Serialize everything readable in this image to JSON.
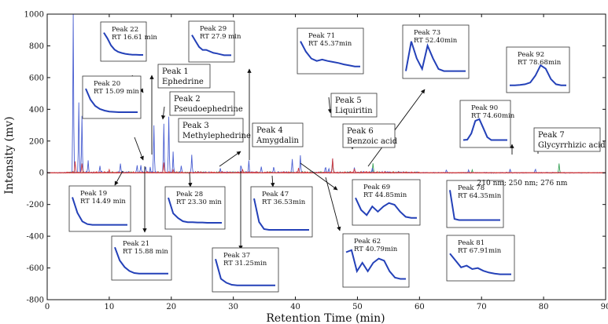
{
  "chart_data": {
    "type": "line",
    "xlabel": "Retention Time (min)",
    "ylabel": "Intensity (mv)",
    "xlim": [
      0,
      90
    ],
    "ylim": [
      -800,
      1000
    ],
    "x_ticks": [
      0,
      10,
      20,
      30,
      40,
      50,
      60,
      70,
      80,
      90
    ],
    "y_ticks": [
      -800,
      -600,
      -400,
      -200,
      0,
      200,
      400,
      600,
      800,
      1000
    ],
    "grid": false,
    "colors": {
      "trace_210": "#4a5fd1",
      "trace_250": "#d94040",
      "trace_276": "#3ba35a",
      "inset": "#2441b8",
      "axis": "#111111"
    },
    "wavelength_note": "210 nm; 250 nm; 276 nm",
    "main_trace_peaks": [
      {
        "x": 4.2,
        "y": 1000
      },
      {
        "x": 5.1,
        "y": 440
      },
      {
        "x": 5.6,
        "y": 360
      },
      {
        "x": 6.6,
        "y": 80
      },
      {
        "x": 8.5,
        "y": 45
      },
      {
        "x": 11.8,
        "y": 55
      },
      {
        "x": 14.49,
        "y": 40
      },
      {
        "x": 15.09,
        "y": 45
      },
      {
        "x": 15.88,
        "y": 40
      },
      {
        "x": 16.61,
        "y": 35
      },
      {
        "x": 17.2,
        "y": 300
      },
      {
        "x": 18.8,
        "y": 310
      },
      {
        "x": 19.6,
        "y": 350
      },
      {
        "x": 20.3,
        "y": 130
      },
      {
        "x": 21.6,
        "y": 40
      },
      {
        "x": 23.3,
        "y": 110
      },
      {
        "x": 27.9,
        "y": 30
      },
      {
        "x": 31.25,
        "y": 50
      },
      {
        "x": 32.5,
        "y": 75
      },
      {
        "x": 34.5,
        "y": 35
      },
      {
        "x": 36.53,
        "y": 40
      },
      {
        "x": 39.5,
        "y": 85
      },
      {
        "x": 40.79,
        "y": 110
      },
      {
        "x": 44.85,
        "y": 35
      },
      {
        "x": 45.37,
        "y": 30
      },
      {
        "x": 46.0,
        "y": 90
      },
      {
        "x": 49.5,
        "y": 30
      },
      {
        "x": 52.4,
        "y": 30
      },
      {
        "x": 64.35,
        "y": 20
      },
      {
        "x": 67.91,
        "y": 20
      },
      {
        "x": 74.6,
        "y": 25
      },
      {
        "x": 78.68,
        "y": 25
      }
    ],
    "secondary_trace_peaks": [
      {
        "x": 4.5,
        "y": 70
      },
      {
        "x": 5.6,
        "y": 60
      },
      {
        "x": 10.0,
        "y": 20
      },
      {
        "x": 18.8,
        "y": 60
      },
      {
        "x": 20.3,
        "y": 20
      },
      {
        "x": 31.5,
        "y": 20
      },
      {
        "x": 40.5,
        "y": 30
      },
      {
        "x": 46.0,
        "y": 90
      },
      {
        "x": 49.5,
        "y": 25
      }
    ],
    "tertiary_trace_peaks": [
      {
        "x": 46.0,
        "y": 80
      },
      {
        "x": 52.5,
        "y": 60
      },
      {
        "x": 68.5,
        "y": 20
      },
      {
        "x": 82.5,
        "y": 60
      }
    ],
    "compound_labels": [
      {
        "lines": [
          "Peak 1",
          "Ephedrine"
        ]
      },
      {
        "lines": [
          "Peak 2",
          "Pseudoephedrine"
        ]
      },
      {
        "lines": [
          "Peak 3",
          "Methylephedrine"
        ]
      },
      {
        "lines": [
          "Peak 4",
          "Amygdalin"
        ]
      },
      {
        "lines": [
          "Peak 5",
          "Liquiritin"
        ]
      },
      {
        "lines": [
          "Peak 6",
          "Benzoic acid"
        ]
      },
      {
        "lines": [
          "Peak 7",
          "Glycyrrhizic acid"
        ]
      }
    ],
    "insets": [
      {
        "peak": "Peak 22",
        "rt": "RT 16.61 min",
        "profile": [
          0.9,
          0.7,
          0.45,
          0.3,
          0.22,
          0.18,
          0.15,
          0.13,
          0.12,
          0.12,
          0.11,
          0.11
        ]
      },
      {
        "peak": "Peak 20",
        "rt": "RT 15.09 min",
        "profile": [
          0.85,
          0.5,
          0.3,
          0.2,
          0.15,
          0.12,
          0.11,
          0.1,
          0.1,
          0.1,
          0.1,
          0.1
        ]
      },
      {
        "peak": "Peak 29",
        "rt": "RT 27.9 min",
        "profile": [
          0.8,
          0.6,
          0.4,
          0.3,
          0.3,
          0.25,
          0.2,
          0.18,
          0.15,
          0.12,
          0.12,
          0.12
        ]
      },
      {
        "peak": "Peak 71",
        "rt": "RT 45.37min",
        "profile": [
          0.85,
          0.55,
          0.35,
          0.28,
          0.32,
          0.28,
          0.25,
          0.22,
          0.18,
          0.15,
          0.12,
          0.12
        ]
      },
      {
        "peak": "Peak 73",
        "rt": "RT 52.40min",
        "profile": [
          0.1,
          0.8,
          0.4,
          0.15,
          0.7,
          0.4,
          0.15,
          0.1,
          0.1,
          0.1,
          0.1,
          0.1
        ]
      },
      {
        "peak": "Peak 92",
        "rt": "RT 78.68min",
        "profile": [
          0.12,
          0.12,
          0.13,
          0.15,
          0.2,
          0.4,
          0.7,
          0.6,
          0.3,
          0.15,
          0.12,
          0.12
        ]
      },
      {
        "peak": "Peak 90",
        "rt": "RT 74.60min",
        "profile": [
          0.12,
          0.13,
          0.3,
          0.65,
          0.7,
          0.45,
          0.2,
          0.12,
          0.12,
          0.12,
          0.12,
          0.12
        ]
      },
      {
        "peak": "Peak 19",
        "rt": "RT 14.49 min",
        "profile": [
          0.9,
          0.45,
          0.2,
          0.12,
          0.1,
          0.1,
          0.1,
          0.1,
          0.1,
          0.1,
          0.1,
          0.1
        ]
      },
      {
        "peak": "Peak 21",
        "rt": "RT 15.88 min",
        "profile": [
          0.9,
          0.5,
          0.3,
          0.18,
          0.12,
          0.1,
          0.1,
          0.1,
          0.1,
          0.1,
          0.1,
          0.1
        ]
      },
      {
        "peak": "Peak 28",
        "rt": "RT 23.30 min",
        "profile": [
          0.9,
          0.4,
          0.25,
          0.15,
          0.12,
          0.12,
          0.11,
          0.11,
          0.1,
          0.1,
          0.1,
          0.1
        ]
      },
      {
        "peak": "Peak 37",
        "rt": "RT 31.25min",
        "profile": [
          0.9,
          0.3,
          0.18,
          0.12,
          0.1,
          0.1,
          0.1,
          0.1,
          0.1,
          0.1,
          0.1,
          0.1
        ]
      },
      {
        "peak": "Peak 47",
        "rt": "RT 36.53min",
        "profile": [
          0.9,
          0.3,
          0.12,
          0.1,
          0.1,
          0.1,
          0.1,
          0.1,
          0.1,
          0.1,
          0.1,
          0.1
        ]
      },
      {
        "peak": "Peak 69",
        "rt": "RT 44.85min",
        "profile": [
          0.7,
          0.35,
          0.2,
          0.45,
          0.3,
          0.45,
          0.55,
          0.5,
          0.3,
          0.15,
          0.12,
          0.12
        ]
      },
      {
        "peak": "Peak 62",
        "rt": "RT 40.79min",
        "profile": [
          0.75,
          0.8,
          0.3,
          0.5,
          0.3,
          0.5,
          0.6,
          0.55,
          0.3,
          0.15,
          0.12,
          0.12
        ]
      },
      {
        "peak": "Peak 78",
        "rt": "RT 64.35min",
        "profile": [
          0.95,
          0.15,
          0.12,
          0.12,
          0.12,
          0.12,
          0.12,
          0.12,
          0.12,
          0.12,
          0.12,
          0.12
        ]
      },
      {
        "peak": "Peak 81",
        "rt": "RT 67.91min",
        "profile": [
          0.7,
          0.5,
          0.3,
          0.35,
          0.25,
          0.28,
          0.2,
          0.15,
          0.12,
          0.1,
          0.1,
          0.1
        ]
      }
    ]
  }
}
